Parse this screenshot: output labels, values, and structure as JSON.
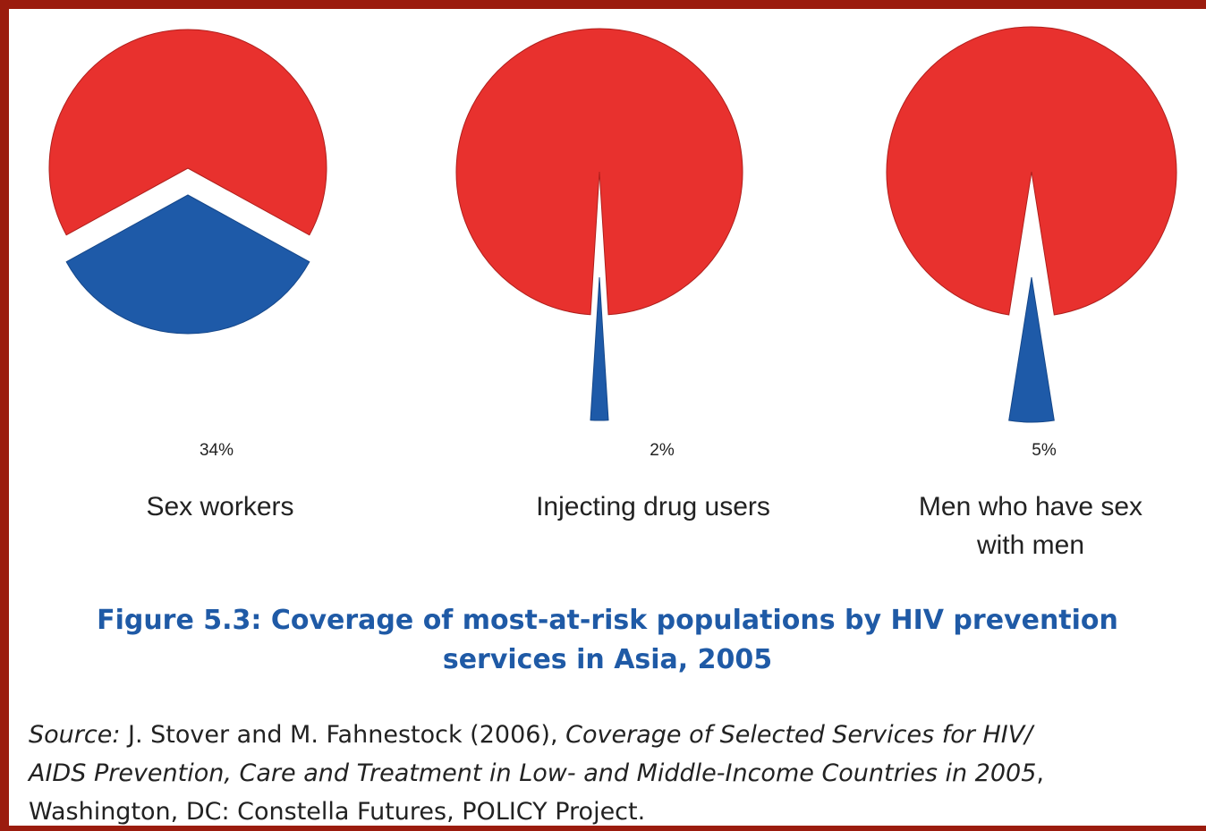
{
  "chart_data": {
    "type": "pie",
    "title": "Figure 5.3: Coverage of most-at-risk populations by HIV prevention services in Asia, 2005",
    "colors": {
      "covered": "#1e5aa8",
      "not_covered": "#e8312e"
    },
    "pies": [
      {
        "category": "Sex workers",
        "value": 34,
        "label": "34%"
      },
      {
        "category": "Injecting drug users",
        "value": 2,
        "label": "2%"
      },
      {
        "category": "Men who have sex with men",
        "value": 5,
        "label": "5%"
      }
    ]
  },
  "figure": {
    "title_line1": "Figure 5.3: Coverage of most-at-risk populations by HIV prevention",
    "title_line2": "services in Asia, 2005",
    "categories": {
      "sex_workers": "Sex workers",
      "idu": "Injecting drug users",
      "msm_line1": "Men who have sex",
      "msm_line2": "with men"
    }
  },
  "source": {
    "label": "Source:",
    "authors": " J. Stover and M. Fahnestock (2006), ",
    "title_part1": "Coverage of Selected Services for HIV/",
    "title_part2": "AIDS Prevention, Care and Treatment in Low- and Middle-Income Countries in 2005",
    "sep": ",",
    "publisher": "Washington, DC: Constella Futures, POLICY Project."
  }
}
